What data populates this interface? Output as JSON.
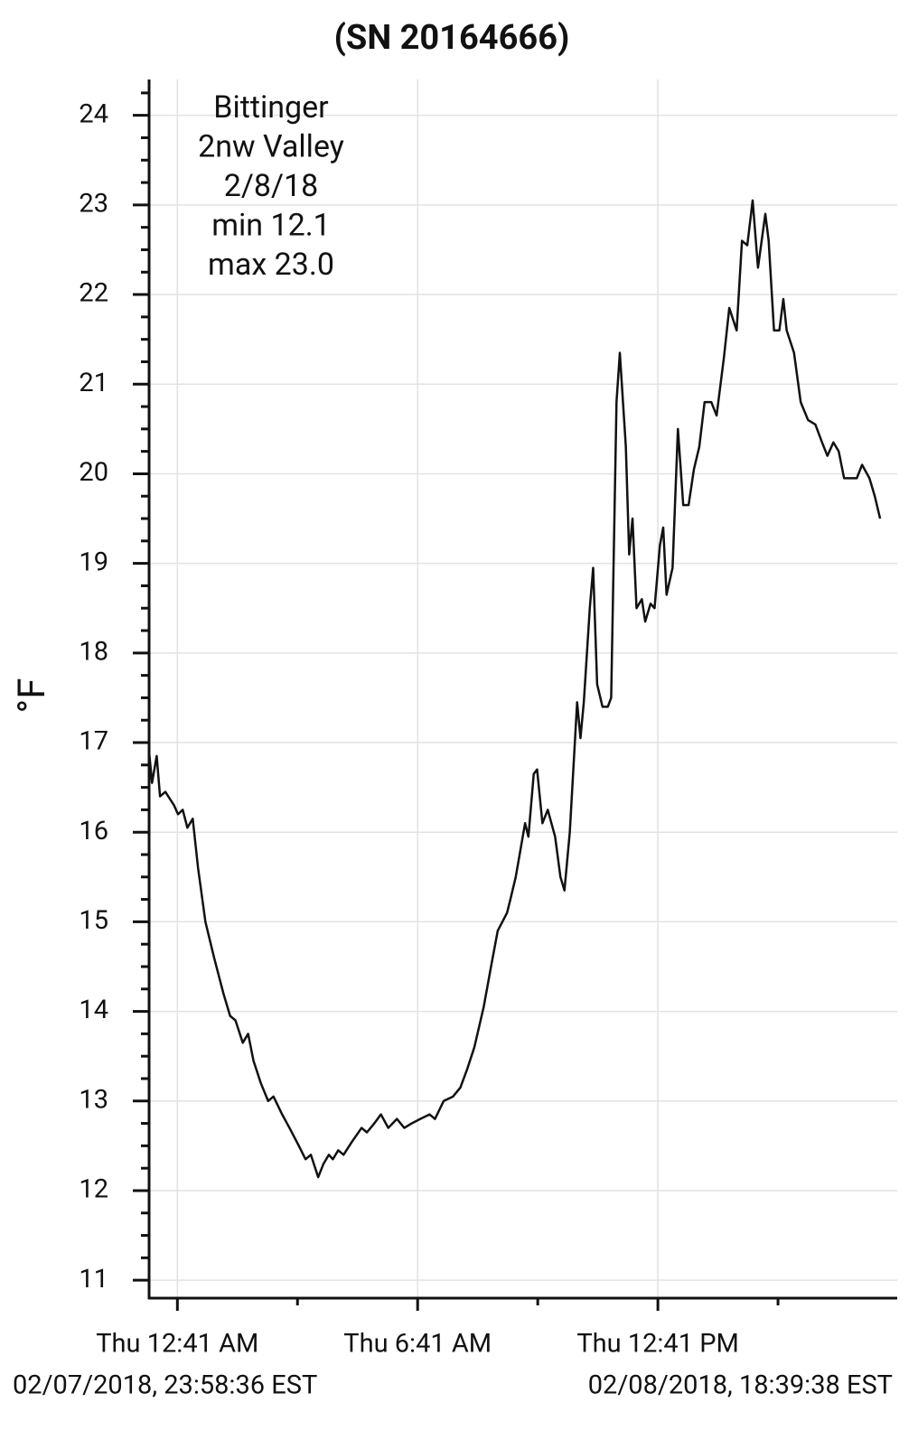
{
  "chart_data": {
    "type": "line",
    "title": "(SN 20164666)",
    "y_label": "°F",
    "annotation": [
      "Bittinger",
      "2nw Valley",
      "2/8/18",
      "min 12.1",
      "max 23.0"
    ],
    "start_label": "02/07/2018, 23:58:36 EST",
    "end_label": "02/08/2018, 18:39:38 EST",
    "color": "#111111",
    "grid": true,
    "xlim": [
      "2018-02-07T23:58:36",
      "2018-02-08T18:39:38"
    ],
    "xticks": [
      {
        "value": "2018-02-08T00:41",
        "label": "Thu 12:41 AM"
      },
      {
        "value": "2018-02-08T06:41",
        "label": "Thu 6:41 AM"
      },
      {
        "value": "2018-02-08T12:41",
        "label": "Thu 12:41 PM"
      }
    ],
    "xminorticks": [
      "2018-02-08T03:41",
      "2018-02-08T09:41",
      "2018-02-08T15:41"
    ],
    "ylim": [
      10.8,
      24.4
    ],
    "yticks": [
      11,
      12,
      13,
      14,
      15,
      16,
      17,
      18,
      19,
      20,
      21,
      22,
      23,
      24
    ],
    "yminorticks": [
      11.25,
      11.5,
      11.75,
      12.25,
      12.5,
      12.75,
      13.25,
      13.5,
      13.75,
      14.25,
      14.5,
      14.75,
      15.25,
      15.5,
      15.75,
      16.25,
      16.5,
      16.75,
      17.25,
      17.5,
      17.75,
      18.25,
      18.5,
      18.75,
      19.25,
      19.5,
      19.75,
      20.25,
      20.5,
      20.75,
      21.25,
      21.5,
      21.75,
      22.25,
      22.5,
      22.75,
      23.25,
      23.5,
      23.75,
      24.25
    ],
    "x": [
      "2018-02-07T23:58:36",
      "2018-02-08T00:03",
      "2018-02-08T00:10",
      "2018-02-08T00:15",
      "2018-02-08T00:23",
      "2018-02-08T00:36",
      "2018-02-08T00:42",
      "2018-02-08T00:49",
      "2018-02-08T00:56",
      "2018-02-08T01:04",
      "2018-02-08T01:12",
      "2018-02-08T01:23",
      "2018-02-08T01:36",
      "2018-02-08T01:50",
      "2018-02-08T02:00",
      "2018-02-08T02:08",
      "2018-02-08T02:19",
      "2018-02-08T02:27",
      "2018-02-08T02:35",
      "2018-02-08T02:46",
      "2018-02-08T02:57",
      "2018-02-08T03:05",
      "2018-02-08T03:18",
      "2018-02-08T03:29",
      "2018-02-08T03:43",
      "2018-02-08T03:53",
      "2018-02-08T04:01",
      "2018-02-08T04:12",
      "2018-02-08T04:20",
      "2018-02-08T04:28",
      "2018-02-08T04:34",
      "2018-02-08T04:42",
      "2018-02-08T04:50",
      "2018-02-08T05:03",
      "2018-02-08T05:17",
      "2018-02-08T05:25",
      "2018-02-08T05:36",
      "2018-02-08T05:46",
      "2018-02-08T05:57",
      "2018-02-08T06:10",
      "2018-02-08T06:21",
      "2018-02-08T06:32",
      "2018-02-08T06:45",
      "2018-02-08T06:59",
      "2018-02-08T07:07",
      "2018-02-08T07:20",
      "2018-02-08T07:34",
      "2018-02-08T07:45",
      "2018-02-08T07:55",
      "2018-02-08T08:06",
      "2018-02-08T08:20",
      "2018-02-08T08:31",
      "2018-02-08T08:41",
      "2018-02-08T08:55",
      "2018-02-08T09:00",
      "2018-02-08T09:08",
      "2018-02-08T09:22",
      "2018-02-08T09:27",
      "2018-02-08T09:35",
      "2018-02-08T09:40",
      "2018-02-08T09:48",
      "2018-02-08T09:56",
      "2018-02-08T10:07",
      "2018-02-08T10:15",
      "2018-02-08T10:21",
      "2018-02-08T10:29",
      "2018-02-08T10:40",
      "2018-02-08T10:45",
      "2018-02-08T10:50",
      "2018-02-08T10:59",
      "2018-02-08T11:04",
      "2018-02-08T11:10",
      "2018-02-08T11:18",
      "2018-02-08T11:26",
      "2018-02-08T11:31",
      "2018-02-08T11:39",
      "2018-02-08T11:44",
      "2018-02-08T11:53",
      "2018-02-08T11:58",
      "2018-02-08T12:03",
      "2018-02-08T12:09",
      "2018-02-08T12:17",
      "2018-02-08T12:22",
      "2018-02-08T12:30",
      "2018-02-08T12:36",
      "2018-02-08T12:44",
      "2018-02-08T12:49",
      "2018-02-08T12:54",
      "2018-02-08T13:03",
      "2018-02-08T13:11",
      "2018-02-08T13:19",
      "2018-02-08T13:27",
      "2018-02-08T13:35",
      "2018-02-08T13:43",
      "2018-02-08T13:51",
      "2018-02-08T14:01",
      "2018-02-08T14:09",
      "2018-02-08T14:20",
      "2018-02-08T14:28",
      "2018-02-08T14:39",
      "2018-02-08T14:47",
      "2018-02-08T14:55",
      "2018-02-08T15:03",
      "2018-02-08T15:11",
      "2018-02-08T15:22",
      "2018-02-08T15:27",
      "2018-02-08T15:35",
      "2018-02-08T15:43",
      "2018-02-08T15:49",
      "2018-02-08T15:54",
      "2018-02-08T16:05",
      "2018-02-08T16:15",
      "2018-02-08T16:26",
      "2018-02-08T16:37",
      "2018-02-08T16:47",
      "2018-02-08T16:55",
      "2018-02-08T17:04",
      "2018-02-08T17:12",
      "2018-02-08T17:20",
      "2018-02-08T17:28",
      "2018-02-08T17:39",
      "2018-02-08T17:47",
      "2018-02-08T17:58",
      "2018-02-08T18:06",
      "2018-02-08T18:14"
    ],
    "values": [
      16.9,
      16.55,
      16.85,
      16.4,
      16.45,
      16.3,
      16.2,
      16.25,
      16.05,
      16.15,
      15.6,
      15.0,
      14.6,
      14.2,
      13.95,
      13.9,
      13.65,
      13.75,
      13.45,
      13.2,
      13.0,
      13.05,
      12.85,
      12.7,
      12.5,
      12.35,
      12.4,
      12.15,
      12.3,
      12.4,
      12.35,
      12.45,
      12.4,
      12.55,
      12.7,
      12.65,
      12.75,
      12.85,
      12.7,
      12.8,
      12.7,
      12.75,
      12.8,
      12.85,
      12.8,
      13.0,
      13.05,
      13.15,
      13.35,
      13.6,
      14.05,
      14.5,
      14.9,
      15.1,
      15.25,
      15.5,
      16.1,
      15.95,
      16.65,
      16.7,
      16.1,
      16.25,
      15.95,
      15.5,
      15.35,
      16.0,
      17.45,
      17.05,
      17.45,
      18.5,
      18.95,
      17.65,
      17.4,
      17.4,
      17.5,
      20.8,
      21.35,
      20.3,
      19.1,
      19.5,
      18.5,
      18.6,
      18.35,
      18.55,
      18.5,
      19.2,
      19.4,
      18.65,
      18.95,
      20.5,
      19.65,
      19.65,
      20.05,
      20.3,
      20.8,
      20.8,
      20.65,
      21.3,
      21.85,
      21.6,
      22.6,
      22.55,
      23.05,
      22.3,
      22.9,
      22.6,
      21.6,
      21.6,
      21.95,
      21.6,
      21.35,
      20.8,
      20.6,
      20.55,
      20.35,
      20.2,
      20.35,
      20.25,
      19.95,
      19.95,
      19.95,
      20.1,
      19.95,
      19.75,
      19.5
    ]
  }
}
